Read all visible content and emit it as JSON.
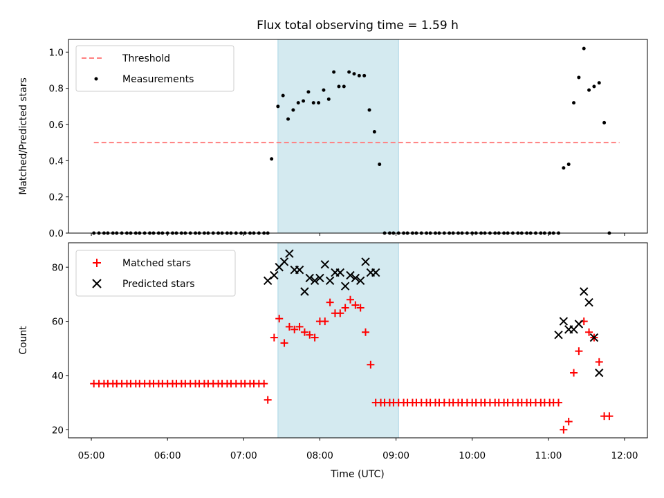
{
  "title": "Flux total observing time = 1.59 h",
  "xlabel": "Time (UTC)",
  "x_tick_labels": [
    "05:00",
    "06:00",
    "07:00",
    "08:00",
    "09:00",
    "10:00",
    "11:00",
    "12:00"
  ],
  "colors": {
    "threshold": "#ff7f7f",
    "measurements": "#000000",
    "matched": "#ff0000",
    "predicted": "#000000",
    "span_fill": "#d4eaf0",
    "span_edge": "#a9d6e5"
  },
  "chart_data": [
    {
      "type": "scatter",
      "ylabel": "Matched/Predicted stars",
      "xlim": [
        "04:42",
        "12:18"
      ],
      "ylim": [
        0,
        1.07
      ],
      "y_ticks": [
        "0.0",
        "0.2",
        "0.4",
        "0.6",
        "0.8",
        "1.0"
      ],
      "highlight_span": [
        "07:27",
        "09:02"
      ],
      "legend": {
        "placement": "upper left",
        "entries": [
          "Threshold",
          "Measurements"
        ]
      },
      "series": [
        {
          "name": "Threshold",
          "kind": "dashed-line",
          "x": [
            "05:02",
            "11:56"
          ],
          "y": [
            0.5,
            0.5
          ]
        },
        {
          "name": "Measurements",
          "kind": "point",
          "points": [
            [
              "05:02",
              0
            ],
            [
              "05:06",
              0
            ],
            [
              "05:10",
              0
            ],
            [
              "05:13",
              0
            ],
            [
              "05:17",
              0
            ],
            [
              "05:20",
              0
            ],
            [
              "05:24",
              0
            ],
            [
              "05:28",
              0
            ],
            [
              "05:31",
              0
            ],
            [
              "05:35",
              0
            ],
            [
              "05:38",
              0
            ],
            [
              "05:42",
              0
            ],
            [
              "05:46",
              0
            ],
            [
              "05:49",
              0
            ],
            [
              "05:53",
              0
            ],
            [
              "05:56",
              0
            ],
            [
              "06:00",
              0
            ],
            [
              "06:04",
              0
            ],
            [
              "06:07",
              0
            ],
            [
              "06:11",
              0
            ],
            [
              "06:14",
              0
            ],
            [
              "06:18",
              0
            ],
            [
              "06:22",
              0
            ],
            [
              "06:25",
              0
            ],
            [
              "06:29",
              0
            ],
            [
              "06:32",
              0
            ],
            [
              "06:36",
              0
            ],
            [
              "06:40",
              0
            ],
            [
              "06:43",
              0
            ],
            [
              "06:47",
              0
            ],
            [
              "06:50",
              0
            ],
            [
              "06:54",
              0
            ],
            [
              "06:58",
              0
            ],
            [
              "07:01",
              0
            ],
            [
              "07:05",
              0
            ],
            [
              "07:08",
              0
            ],
            [
              "07:12",
              0
            ],
            [
              "07:16",
              0
            ],
            [
              "07:19",
              0
            ],
            [
              "07:22",
              0.41
            ],
            [
              "07:27",
              0.7
            ],
            [
              "07:31",
              0.76
            ],
            [
              "07:35",
              0.63
            ],
            [
              "07:39",
              0.68
            ],
            [
              "07:43",
              0.72
            ],
            [
              "07:47",
              0.73
            ],
            [
              "07:51",
              0.78
            ],
            [
              "07:55",
              0.72
            ],
            [
              "07:59",
              0.72
            ],
            [
              "08:03",
              0.79
            ],
            [
              "08:07",
              0.74
            ],
            [
              "08:11",
              0.89
            ],
            [
              "08:15",
              0.81
            ],
            [
              "08:19",
              0.81
            ],
            [
              "08:23",
              0.89
            ],
            [
              "08:27",
              0.88
            ],
            [
              "08:31",
              0.87
            ],
            [
              "08:35",
              0.87
            ],
            [
              "08:39",
              0.68
            ],
            [
              "08:43",
              0.56
            ],
            [
              "08:47",
              0.38
            ],
            [
              "08:51",
              0
            ],
            [
              "08:55",
              0
            ],
            [
              "08:58",
              0
            ],
            [
              "09:02",
              0
            ],
            [
              "09:06",
              0
            ],
            [
              "09:09",
              0
            ],
            [
              "09:13",
              0
            ],
            [
              "09:16",
              0
            ],
            [
              "09:20",
              0
            ],
            [
              "09:24",
              0
            ],
            [
              "09:27",
              0
            ],
            [
              "09:31",
              0
            ],
            [
              "09:34",
              0
            ],
            [
              "09:38",
              0
            ],
            [
              "09:42",
              0
            ],
            [
              "09:45",
              0
            ],
            [
              "09:49",
              0
            ],
            [
              "09:52",
              0
            ],
            [
              "09:56",
              0
            ],
            [
              "10:00",
              0
            ],
            [
              "10:03",
              0
            ],
            [
              "10:07",
              0
            ],
            [
              "10:10",
              0
            ],
            [
              "10:14",
              0
            ],
            [
              "10:18",
              0
            ],
            [
              "10:21",
              0
            ],
            [
              "10:25",
              0
            ],
            [
              "10:28",
              0
            ],
            [
              "10:32",
              0
            ],
            [
              "10:36",
              0
            ],
            [
              "10:39",
              0
            ],
            [
              "10:43",
              0
            ],
            [
              "10:46",
              0
            ],
            [
              "10:50",
              0
            ],
            [
              "10:54",
              0
            ],
            [
              "10:57",
              0
            ],
            [
              "11:01",
              0
            ],
            [
              "11:04",
              0
            ],
            [
              "11:08",
              0
            ],
            [
              "11:12",
              0.36
            ],
            [
              "11:16",
              0.38
            ],
            [
              "11:20",
              0.72
            ],
            [
              "11:24",
              0.86
            ],
            [
              "11:28",
              1.02
            ],
            [
              "11:32",
              0.79
            ],
            [
              "11:36",
              0.81
            ],
            [
              "11:40",
              0.83
            ],
            [
              "11:44",
              0.61
            ],
            [
              "11:48",
              0
            ]
          ]
        }
      ]
    },
    {
      "type": "scatter",
      "ylabel": "Count",
      "xlim": [
        "04:42",
        "12:18"
      ],
      "ylim": [
        17,
        89
      ],
      "y_ticks": [
        "20",
        "40",
        "60",
        "80"
      ],
      "highlight_span": [
        "07:27",
        "09:02"
      ],
      "legend": {
        "placement": "upper left",
        "entries": [
          "Matched stars",
          "Predicted stars"
        ]
      },
      "series": [
        {
          "name": "Matched stars",
          "marker": "+",
          "points": [
            [
              "05:02",
              37
            ],
            [
              "05:06",
              37
            ],
            [
              "05:10",
              37
            ],
            [
              "05:13",
              37
            ],
            [
              "05:17",
              37
            ],
            [
              "05:20",
              37
            ],
            [
              "05:24",
              37
            ],
            [
              "05:28",
              37
            ],
            [
              "05:31",
              37
            ],
            [
              "05:35",
              37
            ],
            [
              "05:38",
              37
            ],
            [
              "05:42",
              37
            ],
            [
              "05:46",
              37
            ],
            [
              "05:49",
              37
            ],
            [
              "05:53",
              37
            ],
            [
              "05:56",
              37
            ],
            [
              "06:00",
              37
            ],
            [
              "06:04",
              37
            ],
            [
              "06:07",
              37
            ],
            [
              "06:11",
              37
            ],
            [
              "06:14",
              37
            ],
            [
              "06:18",
              37
            ],
            [
              "06:22",
              37
            ],
            [
              "06:25",
              37
            ],
            [
              "06:29",
              37
            ],
            [
              "06:32",
              37
            ],
            [
              "06:36",
              37
            ],
            [
              "06:40",
              37
            ],
            [
              "06:43",
              37
            ],
            [
              "06:47",
              37
            ],
            [
              "06:50",
              37
            ],
            [
              "06:54",
              37
            ],
            [
              "06:58",
              37
            ],
            [
              "07:01",
              37
            ],
            [
              "07:05",
              37
            ],
            [
              "07:08",
              37
            ],
            [
              "07:12",
              37
            ],
            [
              "07:16",
              37
            ],
            [
              "07:19",
              31
            ],
            [
              "07:24",
              54
            ],
            [
              "07:28",
              61
            ],
            [
              "07:32",
              52
            ],
            [
              "07:36",
              58
            ],
            [
              "07:40",
              57
            ],
            [
              "07:44",
              58
            ],
            [
              "07:48",
              56
            ],
            [
              "07:52",
              55
            ],
            [
              "07:56",
              54
            ],
            [
              "08:00",
              60
            ],
            [
              "08:04",
              60
            ],
            [
              "08:08",
              67
            ],
            [
              "08:12",
              63
            ],
            [
              "08:16",
              63
            ],
            [
              "08:20",
              65
            ],
            [
              "08:24",
              68
            ],
            [
              "08:28",
              66
            ],
            [
              "08:32",
              65
            ],
            [
              "08:36",
              56
            ],
            [
              "08:40",
              44
            ],
            [
              "08:44",
              30
            ],
            [
              "08:48",
              30
            ],
            [
              "08:51",
              30
            ],
            [
              "08:55",
              30
            ],
            [
              "08:58",
              30
            ],
            [
              "09:02",
              30
            ],
            [
              "09:06",
              30
            ],
            [
              "09:09",
              30
            ],
            [
              "09:13",
              30
            ],
            [
              "09:16",
              30
            ],
            [
              "09:20",
              30
            ],
            [
              "09:24",
              30
            ],
            [
              "09:27",
              30
            ],
            [
              "09:31",
              30
            ],
            [
              "09:34",
              30
            ],
            [
              "09:38",
              30
            ],
            [
              "09:42",
              30
            ],
            [
              "09:45",
              30
            ],
            [
              "09:49",
              30
            ],
            [
              "09:52",
              30
            ],
            [
              "09:56",
              30
            ],
            [
              "10:00",
              30
            ],
            [
              "10:03",
              30
            ],
            [
              "10:07",
              30
            ],
            [
              "10:10",
              30
            ],
            [
              "10:14",
              30
            ],
            [
              "10:18",
              30
            ],
            [
              "10:21",
              30
            ],
            [
              "10:25",
              30
            ],
            [
              "10:28",
              30
            ],
            [
              "10:32",
              30
            ],
            [
              "10:36",
              30
            ],
            [
              "10:39",
              30
            ],
            [
              "10:43",
              30
            ],
            [
              "10:46",
              30
            ],
            [
              "10:50",
              30
            ],
            [
              "10:54",
              30
            ],
            [
              "10:57",
              30
            ],
            [
              "11:01",
              30
            ],
            [
              "11:04",
              30
            ],
            [
              "11:08",
              30
            ],
            [
              "11:12",
              20
            ],
            [
              "11:16",
              23
            ],
            [
              "11:20",
              41
            ],
            [
              "11:24",
              49
            ],
            [
              "11:28",
              60
            ],
            [
              "11:32",
              56
            ],
            [
              "11:36",
              54
            ],
            [
              "11:40",
              45
            ],
            [
              "11:44",
              25
            ],
            [
              "11:48",
              25
            ]
          ]
        },
        {
          "name": "Predicted stars",
          "marker": "x",
          "points": [
            [
              "07:19",
              75
            ],
            [
              "07:24",
              77
            ],
            [
              "07:28",
              80
            ],
            [
              "07:32",
              82
            ],
            [
              "07:36",
              85
            ],
            [
              "07:40",
              79
            ],
            [
              "07:44",
              79
            ],
            [
              "07:48",
              71
            ],
            [
              "07:52",
              76
            ],
            [
              "07:56",
              75
            ],
            [
              "08:00",
              76
            ],
            [
              "08:04",
              81
            ],
            [
              "08:08",
              75
            ],
            [
              "08:12",
              78
            ],
            [
              "08:16",
              78
            ],
            [
              "08:20",
              73
            ],
            [
              "08:24",
              77
            ],
            [
              "08:28",
              76
            ],
            [
              "08:32",
              75
            ],
            [
              "08:36",
              82
            ],
            [
              "08:40",
              78
            ],
            [
              "08:44",
              78
            ],
            [
              "11:08",
              55
            ],
            [
              "11:12",
              60
            ],
            [
              "11:16",
              57
            ],
            [
              "11:20",
              57
            ],
            [
              "11:24",
              59
            ],
            [
              "11:28",
              71
            ],
            [
              "11:32",
              67
            ],
            [
              "11:36",
              54
            ],
            [
              "11:40",
              41
            ]
          ]
        }
      ]
    }
  ]
}
